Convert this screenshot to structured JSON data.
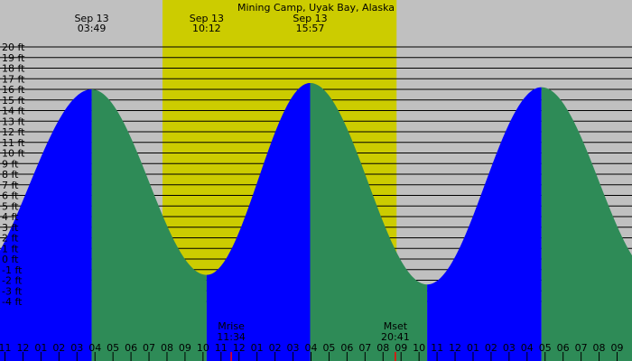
{
  "chart_data": {
    "type": "area",
    "title": "Mining Camp, Uyak Bay, Alaska",
    "xlabel": "",
    "ylabel": "",
    "x_unit": "hour of day",
    "x_range_hours": [
      -1.25,
      33.25
    ],
    "ylim": [
      -4,
      20
    ],
    "y_ticks": [
      {
        "value": 20,
        "label": "20 ft"
      },
      {
        "value": 19,
        "label": "19 ft"
      },
      {
        "value": 18,
        "label": "18 ft"
      },
      {
        "value": 17,
        "label": "17 ft"
      },
      {
        "value": 16,
        "label": "16 ft"
      },
      {
        "value": 15,
        "label": "15 ft"
      },
      {
        "value": 14,
        "label": "14 ft"
      },
      {
        "value": 13,
        "label": "13 ft"
      },
      {
        "value": 12,
        "label": "12 ft"
      },
      {
        "value": 11,
        "label": "11 ft"
      },
      {
        "value": 10,
        "label": "10 ft"
      },
      {
        "value": 9,
        "label": "9 ft"
      },
      {
        "value": 8,
        "label": "8 ft"
      },
      {
        "value": 7,
        "label": "7 ft"
      },
      {
        "value": 6,
        "label": "6 ft"
      },
      {
        "value": 5,
        "label": "5 ft"
      },
      {
        "value": 4,
        "label": "4 ft"
      },
      {
        "value": 3,
        "label": "3 ft"
      },
      {
        "value": 2,
        "label": "2 ft"
      },
      {
        "value": 1,
        "label": "1 ft"
      },
      {
        "value": 0,
        "label": "0 ft"
      },
      {
        "value": -1,
        "label": "-1 ft"
      },
      {
        "value": -2,
        "label": "-2 ft"
      },
      {
        "value": -3,
        "label": "-3 ft"
      },
      {
        "value": -4,
        "label": "-4 ft"
      }
    ],
    "x_ticks": [
      {
        "hour": -1,
        "label": "11",
        "tick": "black"
      },
      {
        "hour": 0,
        "label": "12",
        "tick": "black"
      },
      {
        "hour": 1,
        "label": "01",
        "tick": "black"
      },
      {
        "hour": 2,
        "label": "02",
        "tick": "black"
      },
      {
        "hour": 3,
        "label": "03",
        "tick": "black"
      },
      {
        "hour": 4,
        "label": "04",
        "tick": "black"
      },
      {
        "hour": 5,
        "label": "05",
        "tick": "black"
      },
      {
        "hour": 6,
        "label": "06",
        "tick": "black"
      },
      {
        "hour": 7,
        "label": "07",
        "tick": "black"
      },
      {
        "hour": 8,
        "label": "08",
        "tick": "black"
      },
      {
        "hour": 9,
        "label": "09",
        "tick": "black"
      },
      {
        "hour": 10,
        "label": "10",
        "tick": "black"
      },
      {
        "hour": 11,
        "label": "11",
        "tick": "black"
      },
      {
        "hour": 12,
        "label": "12",
        "tick": "black"
      },
      {
        "hour": 13,
        "label": "01",
        "tick": "black"
      },
      {
        "hour": 14,
        "label": "02",
        "tick": "black"
      },
      {
        "hour": 15,
        "label": "03",
        "tick": "black"
      },
      {
        "hour": 16,
        "label": "04",
        "tick": "black"
      },
      {
        "hour": 17,
        "label": "05",
        "tick": "black"
      },
      {
        "hour": 18,
        "label": "06",
        "tick": "black"
      },
      {
        "hour": 19,
        "label": "07",
        "tick": "black"
      },
      {
        "hour": 20,
        "label": "08",
        "tick": "black"
      },
      {
        "hour": 21,
        "label": "09",
        "tick": "black"
      },
      {
        "hour": 22,
        "label": "10",
        "tick": "black"
      },
      {
        "hour": 23,
        "label": "11",
        "tick": "black"
      },
      {
        "hour": 24,
        "label": "12",
        "tick": "black"
      },
      {
        "hour": 25,
        "label": "01",
        "tick": "black"
      },
      {
        "hour": 26,
        "label": "02",
        "tick": "black"
      },
      {
        "hour": 27,
        "label": "03",
        "tick": "black"
      },
      {
        "hour": 28,
        "label": "04",
        "tick": "black"
      },
      {
        "hour": 29,
        "label": "05",
        "tick": "black"
      },
      {
        "hour": 30,
        "label": "06",
        "tick": "black"
      },
      {
        "hour": 31,
        "label": "07",
        "tick": "black"
      },
      {
        "hour": 32,
        "label": "08",
        "tick": "black"
      },
      {
        "hour": 33,
        "label": "09",
        "tick": "black"
      }
    ],
    "red_ticks_hours": [
      11.567,
      20.683
    ],
    "daylight_hours": [
      7.75,
      20.75
    ],
    "tide_events": [
      {
        "hour": -3.2,
        "height": -2.4,
        "type": "low"
      },
      {
        "hour": 3.817,
        "height": 16.0,
        "type": "high",
        "date_label": "Sep 13",
        "time_label": "03:49",
        "labeled": true
      },
      {
        "hour": 10.2,
        "height": -1.5,
        "type": "low",
        "date_label": "Sep 13",
        "time_label": "10:12",
        "labeled": true
      },
      {
        "hour": 15.95,
        "height": 16.6,
        "type": "high",
        "date_label": "Sep 13",
        "time_label": "15:57",
        "labeled": true
      },
      {
        "hour": 22.45,
        "height": -2.4,
        "type": "low"
      },
      {
        "hour": 28.8,
        "height": 16.2,
        "type": "high"
      },
      {
        "hour": 35.2,
        "height": -1.6,
        "type": "low"
      }
    ],
    "moon_events": [
      {
        "name": "Mrise",
        "time": "11:34"
      },
      {
        "name": "Mset",
        "time": "20:41"
      }
    ],
    "colors": {
      "night_background": "#c0c0c0",
      "day_background": "#cccc00",
      "rising_tide": "#0000ff",
      "falling_tide": "#2e8b57",
      "grid": "#000000",
      "moon_tick": "#ff0000"
    }
  }
}
